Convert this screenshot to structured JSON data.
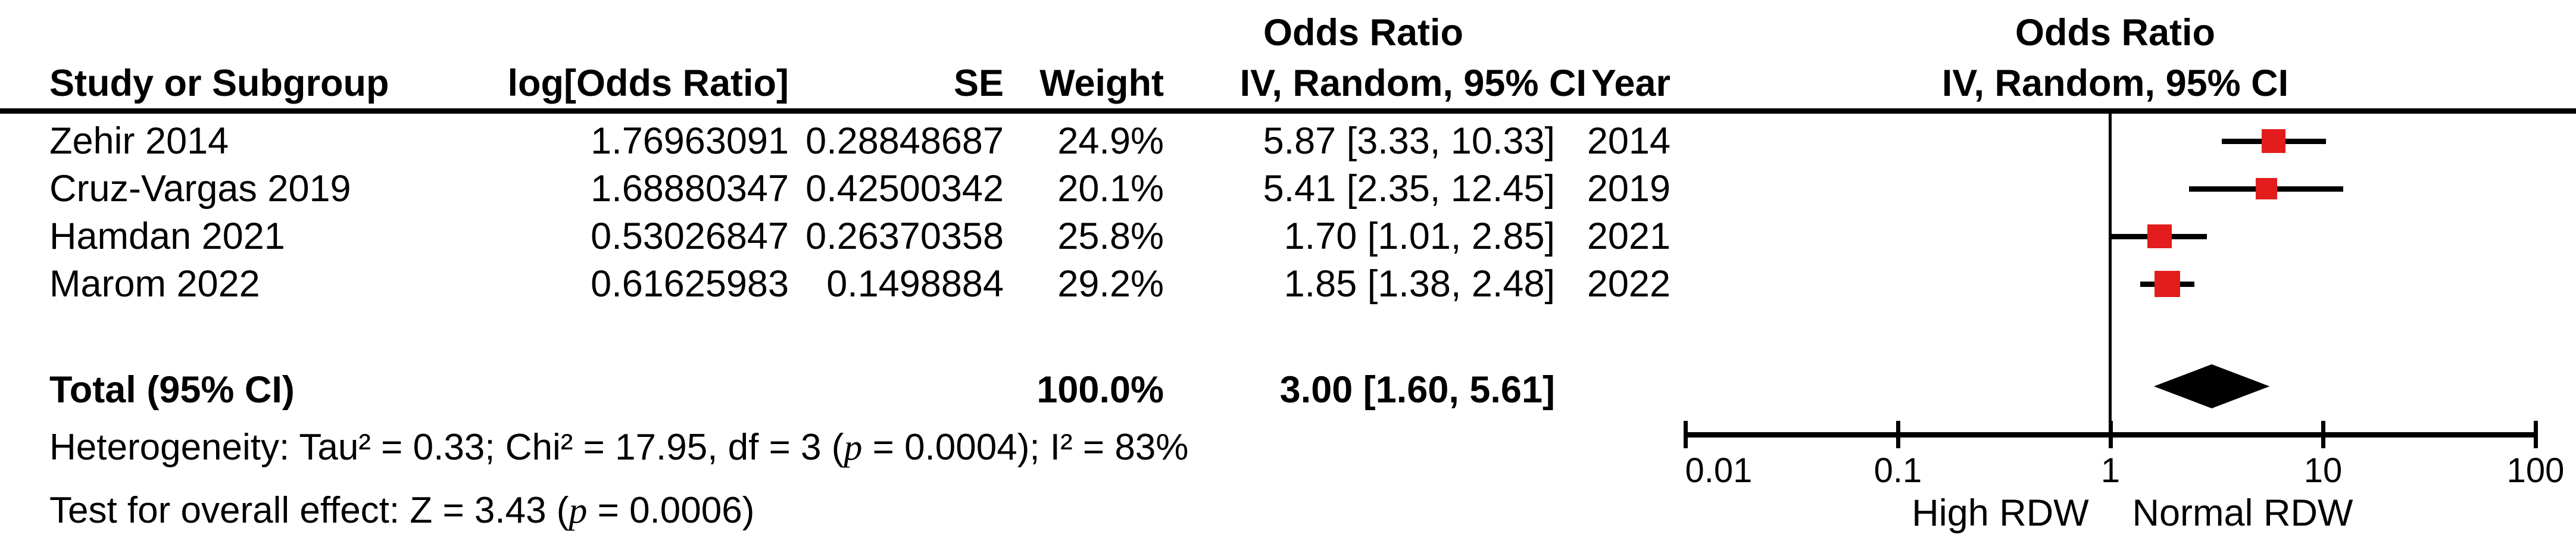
{
  "table": {
    "headers": {
      "study": "Study or Subgroup",
      "log_or": "log[Odds Ratio]",
      "se": "SE",
      "weight": "Weight",
      "effect_group": "Odds Ratio",
      "effect_method": "IV, Random, 95% CI",
      "year": "Year"
    },
    "total_row": {
      "label": "Total (95% CI)",
      "weight": "100.0%",
      "ci_text": "3.00 [1.60, 5.61]"
    },
    "footnotes": {
      "heterogeneity_pre": "Heterogeneity: Tau² = 0.33; Chi² = 17.95, df = 3 (",
      "heterogeneity_p": "p",
      "heterogeneity_post": " = 0.0004); I² = 83%",
      "overall_pre": "Test for overall effect: Z = 3.43 (",
      "overall_p": "p",
      "overall_post": " = 0.0006)"
    }
  },
  "plot": {
    "effect_group": "Odds Ratio",
    "effect_method": "IV, Random, 95% CI",
    "left_label": "High RDW",
    "right_label": "Normal RDW"
  },
  "colors": {
    "marker": "#e31d1d",
    "ink": "#000000"
  },
  "chart_data": {
    "type": "forest",
    "title": "Odds Ratio, IV, Random, 95% CI",
    "x_scale": "log10",
    "x_range": [
      0.01,
      100
    ],
    "x_ticks": [
      "0.01",
      "0.1",
      "1",
      "10",
      "100"
    ],
    "null_line": 1,
    "left_direction_label": "High RDW",
    "right_direction_label": "Normal RDW",
    "studies": [
      {
        "study": "Zehir 2014",
        "log_or": "1.76963091",
        "se": "0.28848687",
        "weight": "24.9%",
        "weight_pct": 24.9,
        "or": 5.87,
        "ci_low": 3.33,
        "ci_high": 10.33,
        "ci_text": "5.87 [3.33, 10.33]",
        "year": "2014"
      },
      {
        "study": "Cruz-Vargas 2019",
        "log_or": "1.68880347",
        "se": "0.42500342",
        "weight": "20.1%",
        "weight_pct": 20.1,
        "or": 5.41,
        "ci_low": 2.35,
        "ci_high": 12.45,
        "ci_text": "5.41 [2.35, 12.45]",
        "year": "2019"
      },
      {
        "study": "Hamdan 2021",
        "log_or": "0.53026847",
        "se": "0.26370358",
        "weight": "25.8%",
        "weight_pct": 25.8,
        "or": 1.7,
        "ci_low": 1.01,
        "ci_high": 2.85,
        "ci_text": "1.70 [1.01, 2.85]",
        "year": "2021"
      },
      {
        "study": "Marom 2022",
        "log_or": "0.61625983",
        "se": "0.1498884",
        "weight": "29.2%",
        "weight_pct": 29.2,
        "or": 1.85,
        "ci_low": 1.38,
        "ci_high": 2.48,
        "ci_text": "1.85 [1.38, 2.48]",
        "year": "2022"
      }
    ],
    "total": {
      "label": "Total (95% CI)",
      "weight": "100.0%",
      "weight_pct": 100.0,
      "or": 3.0,
      "ci_low": 1.6,
      "ci_high": 5.61,
      "ci_text": "3.00 [1.60, 5.61]"
    },
    "heterogeneity": {
      "tau2": 0.33,
      "chi2": 17.95,
      "df": 3,
      "p": 0.0004,
      "i2_pct": 83
    },
    "overall_effect": {
      "z": 3.43,
      "p": 0.0006
    }
  }
}
